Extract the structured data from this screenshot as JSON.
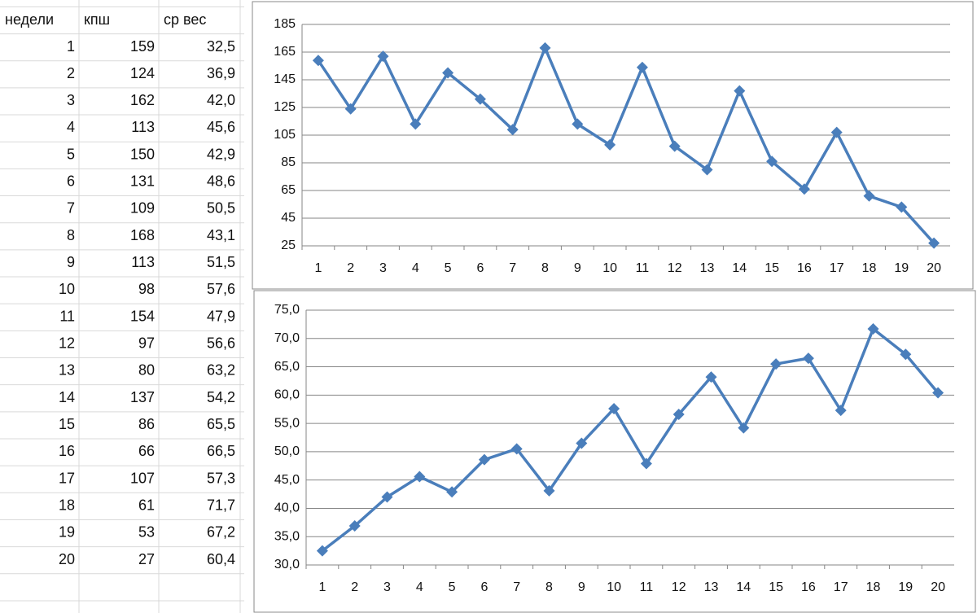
{
  "table": {
    "header": [
      "недели",
      "кпш",
      "ср вес"
    ],
    "rows": [
      [
        1,
        159,
        "32,5"
      ],
      [
        2,
        124,
        "36,9"
      ],
      [
        3,
        162,
        "42,0"
      ],
      [
        4,
        113,
        "45,6"
      ],
      [
        5,
        150,
        "42,9"
      ],
      [
        6,
        131,
        "48,6"
      ],
      [
        7,
        109,
        "50,5"
      ],
      [
        8,
        168,
        "43,1"
      ],
      [
        9,
        113,
        "51,5"
      ],
      [
        10,
        98,
        "57,6"
      ],
      [
        11,
        154,
        "47,9"
      ],
      [
        12,
        97,
        "56,6"
      ],
      [
        13,
        80,
        "63,2"
      ],
      [
        14,
        137,
        "54,2"
      ],
      [
        15,
        86,
        "65,5"
      ],
      [
        16,
        66,
        "66,5"
      ],
      [
        17,
        107,
        "57,3"
      ],
      [
        18,
        61,
        "71,7"
      ],
      [
        19,
        53,
        "67,2"
      ],
      [
        20,
        27,
        "60,4"
      ]
    ]
  },
  "chart_data": [
    {
      "type": "line",
      "categories": [
        1,
        2,
        3,
        4,
        5,
        6,
        7,
        8,
        9,
        10,
        11,
        12,
        13,
        14,
        15,
        16,
        17,
        18,
        19,
        20
      ],
      "values": [
        159,
        124,
        162,
        113,
        150,
        131,
        109,
        168,
        113,
        98,
        154,
        97,
        80,
        137,
        86,
        66,
        107,
        61,
        53,
        27
      ],
      "color": "#4a7ebb",
      "ylim": [
        25,
        185
      ],
      "yticks": [
        25,
        45,
        65,
        85,
        105,
        125,
        145,
        165,
        185
      ],
      "grid": true
    },
    {
      "type": "line",
      "categories": [
        1,
        2,
        3,
        4,
        5,
        6,
        7,
        8,
        9,
        10,
        11,
        12,
        13,
        14,
        15,
        16,
        17,
        18,
        19,
        20
      ],
      "values": [
        32.5,
        36.9,
        42.0,
        45.6,
        42.9,
        48.6,
        50.5,
        43.1,
        51.5,
        57.6,
        47.9,
        56.6,
        63.2,
        54.2,
        65.5,
        66.5,
        57.3,
        71.7,
        67.2,
        60.4
      ],
      "color": "#4a7ebb",
      "ylim": [
        30,
        75
      ],
      "yticks": [
        {
          "value": 30,
          "label": "30,0"
        },
        {
          "value": 35,
          "label": "35,0"
        },
        {
          "value": 40,
          "label": "40,0"
        },
        {
          "value": 45,
          "label": "45,0"
        },
        {
          "value": 50,
          "label": "50,0"
        },
        {
          "value": 55,
          "label": "55,0"
        },
        {
          "value": 60,
          "label": "60,0"
        },
        {
          "value": 65,
          "label": "65,0"
        },
        {
          "value": 70,
          "label": "70,0"
        },
        {
          "value": 75,
          "label": "75,0"
        }
      ],
      "grid": true
    }
  ]
}
